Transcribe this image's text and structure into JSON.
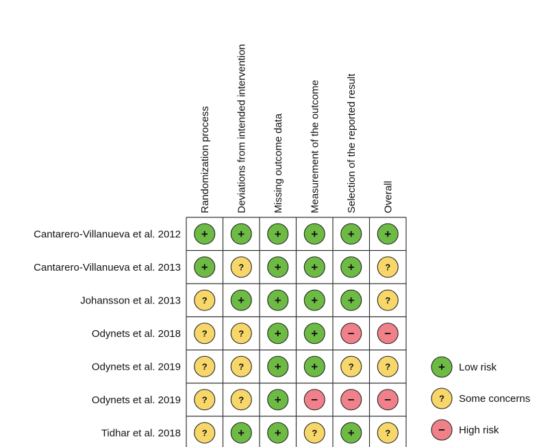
{
  "chart_data": {
    "type": "table",
    "columns": [
      "Randomization process",
      "Deviations from intended intervention",
      "Missing outcome data",
      "Measurement of the outcome",
      "Selection of the reported result",
      "Overall"
    ],
    "rows": [
      {
        "study": "Cantarero-Villanueva et al. 2012",
        "judgements": [
          "low",
          "low",
          "low",
          "low",
          "low",
          "low"
        ]
      },
      {
        "study": "Cantarero-Villanueva et al. 2013",
        "judgements": [
          "low",
          "some",
          "low",
          "low",
          "low",
          "some"
        ]
      },
      {
        "study": "Johansson et al. 2013",
        "judgements": [
          "some",
          "low",
          "low",
          "low",
          "low",
          "some"
        ]
      },
      {
        "study": "Odynets et al. 2018",
        "judgements": [
          "some",
          "some",
          "low",
          "low",
          "high",
          "high"
        ]
      },
      {
        "study": "Odynets et al. 2019",
        "judgements": [
          "some",
          "some",
          "low",
          "low",
          "some",
          "some"
        ]
      },
      {
        "study": "Odynets et al. 2019",
        "judgements": [
          "some",
          "some",
          "low",
          "high",
          "high",
          "high"
        ]
      },
      {
        "study": "Tidhar et al. 2018",
        "judgements": [
          "some",
          "low",
          "low",
          "some",
          "low",
          "some"
        ]
      }
    ],
    "legend": [
      {
        "key": "low",
        "label": "Low risk",
        "symbol": "+",
        "color": "#6dbb45"
      },
      {
        "key": "some",
        "label": "Some concerns",
        "symbol": "?",
        "color": "#f7d76a"
      },
      {
        "key": "high",
        "label": "High risk",
        "symbol": "−",
        "color": "#f0818a"
      }
    ],
    "legend_position": "right",
    "grid": true
  }
}
